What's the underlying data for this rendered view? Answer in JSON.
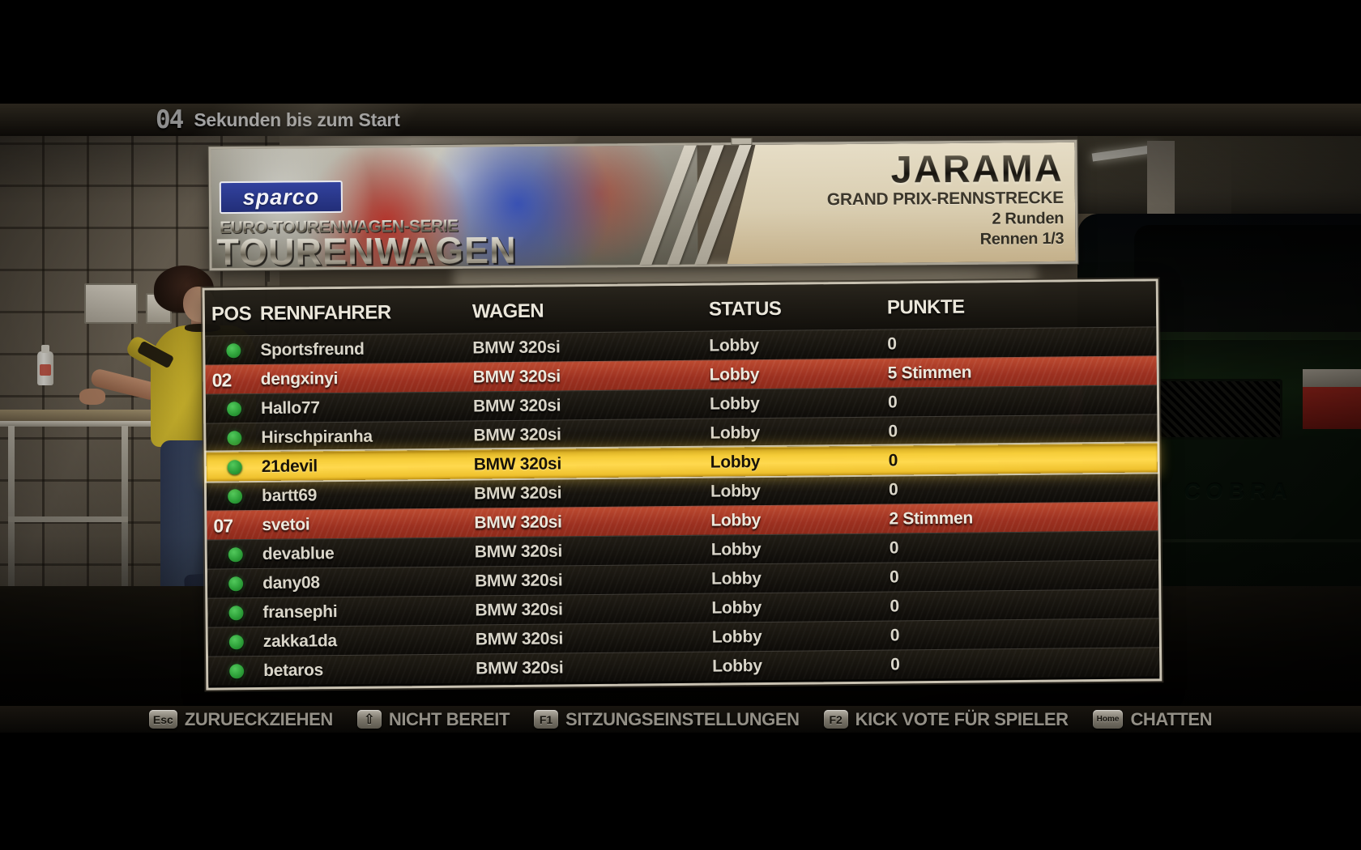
{
  "countdown": {
    "value": "04",
    "label": "Sekunden bis zum Start"
  },
  "banner": {
    "sponsor_logo": "sparco",
    "series_subtitle": "EURO-TOURENWAGEN-SERIE",
    "series_title": "TOURENWAGEN",
    "track_name": "JARAMA",
    "track_type": "GRAND PRIX-RENNSTRECKE",
    "laps": "2 Runden",
    "race_number": "Rennen 1/3"
  },
  "scoreboard": {
    "headers": {
      "pos": "POS",
      "driver": "RENNFAHRER",
      "car": "WAGEN",
      "status": "STATUS",
      "points": "PUNKTE"
    },
    "rows": [
      {
        "pos": "",
        "ready": true,
        "driver": "Sportsfreund",
        "car": "BMW 320si",
        "status": "Lobby",
        "points": "0",
        "highlight": "none"
      },
      {
        "pos": "02",
        "ready": false,
        "driver": "dengxinyi",
        "car": "BMW 320si",
        "status": "Lobby",
        "points": "5 Stimmen",
        "highlight": "red"
      },
      {
        "pos": "",
        "ready": true,
        "driver": "Hallo77",
        "car": "BMW 320si",
        "status": "Lobby",
        "points": "0",
        "highlight": "none"
      },
      {
        "pos": "",
        "ready": true,
        "driver": "Hirschpiranha",
        "car": "BMW 320si",
        "status": "Lobby",
        "points": "0",
        "highlight": "none"
      },
      {
        "pos": "",
        "ready": true,
        "driver": "21devil",
        "car": "BMW 320si",
        "status": "Lobby",
        "points": "0",
        "highlight": "yellow"
      },
      {
        "pos": "",
        "ready": true,
        "driver": "bartt69",
        "car": "BMW 320si",
        "status": "Lobby",
        "points": "0",
        "highlight": "none"
      },
      {
        "pos": "07",
        "ready": false,
        "driver": "svetoi",
        "car": "BMW 320si",
        "status": "Lobby",
        "points": "2 Stimmen",
        "highlight": "red"
      },
      {
        "pos": "",
        "ready": true,
        "driver": "devablue",
        "car": "BMW 320si",
        "status": "Lobby",
        "points": "0",
        "highlight": "none"
      },
      {
        "pos": "",
        "ready": true,
        "driver": "dany08",
        "car": "BMW 320si",
        "status": "Lobby",
        "points": "0",
        "highlight": "none"
      },
      {
        "pos": "",
        "ready": true,
        "driver": "fransephi",
        "car": "BMW 320si",
        "status": "Lobby",
        "points": "0",
        "highlight": "none"
      },
      {
        "pos": "",
        "ready": true,
        "driver": "zakka1da",
        "car": "BMW 320si",
        "status": "Lobby",
        "points": "0",
        "highlight": "none"
      },
      {
        "pos": "",
        "ready": true,
        "driver": "betaros",
        "car": "BMW 320si",
        "status": "Lobby",
        "points": "0",
        "highlight": "none"
      }
    ]
  },
  "hints": [
    {
      "key": "Esc",
      "label": "ZURUECKZIEHEN"
    },
    {
      "key": "⇧",
      "label": "NICHT BEREIT"
    },
    {
      "key": "F1",
      "label": "SITZUNGSEINSTELLUNGEN"
    },
    {
      "key": "F2",
      "label": "KICK VOTE FÜR SPIELER"
    },
    {
      "key": "Home",
      "label": "CHATTEN"
    }
  ],
  "scene": {
    "car_brand": "COBRA"
  },
  "colors": {
    "ready_green": "#2fa33a",
    "kick_vote_red": "#b23a26",
    "self_highlight_yellow": "#f6c929",
    "banner_cream": "#d9d0b8",
    "sparco_blue": "#2b3c9e"
  }
}
